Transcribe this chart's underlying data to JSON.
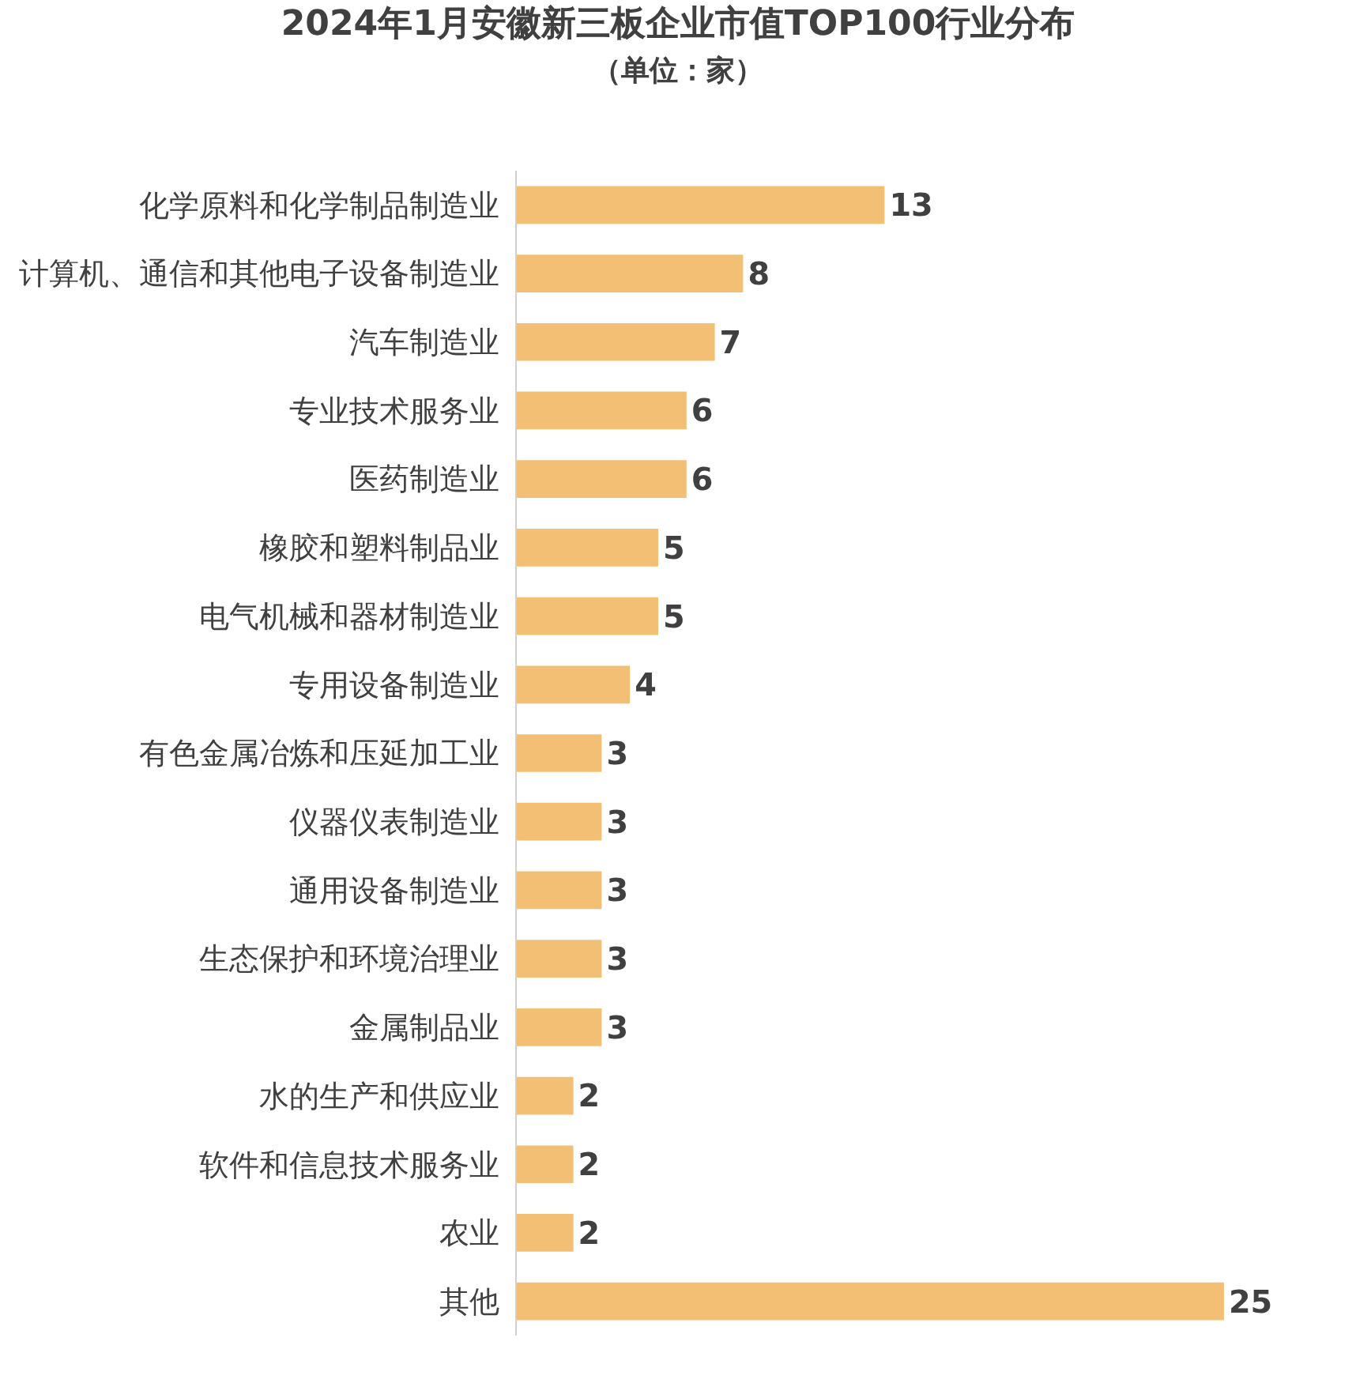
{
  "chart_data": {
    "type": "bar",
    "orientation": "horizontal",
    "title": "2024年1月安徽新三板企业市值TOP100行业分布",
    "subtitle": "（单位：家）",
    "categories": [
      "化学原料和化学制品制造业",
      "计算机、通信和其他电子设备制造业",
      "汽车制造业",
      "专业技术服务业",
      "医药制造业",
      "橡胶和塑料制品业",
      "电气机械和器材制造业",
      "专用设备制造业",
      "有色金属冶炼和压延加工业",
      "仪器仪表制造业",
      "通用设备制造业",
      "生态保护和环境治理业",
      "金属制品业",
      "水的生产和供应业",
      "软件和信息技术服务业",
      "农业",
      "其他"
    ],
    "values": [
      13,
      8,
      7,
      6,
      6,
      5,
      5,
      4,
      3,
      3,
      3,
      3,
      3,
      2,
      2,
      2,
      25
    ],
    "color": "#f2bf74",
    "data_labels": true
  }
}
